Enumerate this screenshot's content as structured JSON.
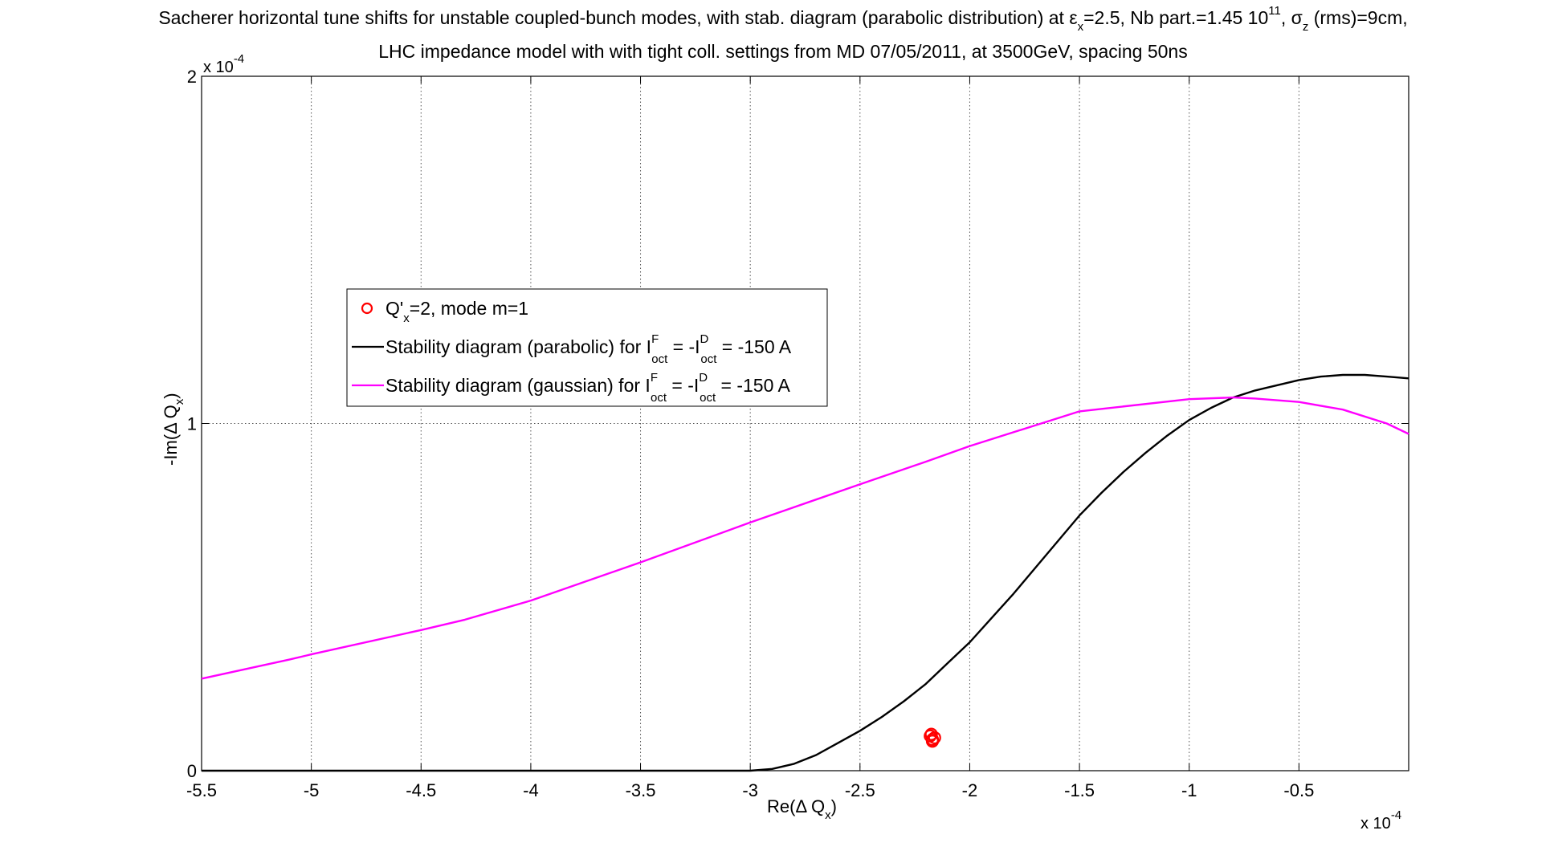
{
  "chart_data": {
    "type": "line",
    "title_line1": {
      "prefix": "Sacherer horizontal tune shifts for unstable coupled-bunch modes, with stab. diagram (parabolic distribution) at ε",
      "eps_sub": "x",
      "mid": "=2.5, Nb part.=1.45 10",
      "nb_sup": "11",
      "sep": ", σ",
      "sigma_sub": "z",
      "suffix": " (rms)=9cm,"
    },
    "title_line2": "LHC impedance model with with tight coll. settings from MD 07/05/2011, at 3500GeV, spacing 50ns",
    "xlabel": {
      "main": "Re(Δ Q",
      "sub": "x",
      "close": ")"
    },
    "ylabel": {
      "main": "-Im(Δ Q",
      "sub": "x",
      "close": ")"
    },
    "x_multiplier": {
      "base": "x 10",
      "exp": "-4"
    },
    "y_multiplier": {
      "base": "x 10",
      "exp": "-4"
    },
    "xlim": [
      -5.5,
      0
    ],
    "ylim": [
      0,
      2
    ],
    "x_ticks": [
      -5.5,
      -5,
      -4.5,
      -4,
      -3.5,
      -3,
      -2.5,
      -2,
      -1.5,
      -1,
      -0.5
    ],
    "x_tick_labels": [
      "-5.5",
      "-5",
      "-4.5",
      "-4",
      "-3.5",
      "-3",
      "-2.5",
      "-2",
      "-1.5",
      "-1",
      "-0.5"
    ],
    "y_ticks": [
      0,
      1,
      2
    ],
    "y_tick_labels": [
      "0",
      "1",
      "2"
    ],
    "grid": true,
    "legend_position": "upper-left",
    "series": [
      {
        "name_parts": {
          "a": "Q'",
          "a_sub": "x",
          "b": "=2, mode m=1"
        },
        "style": "marker-circle",
        "color": "#ff0000",
        "x": [
          -2.17,
          -2.18,
          -2.16,
          -2.17,
          -2.175
        ],
        "y": [
          0.09,
          0.1,
          0.095,
          0.085,
          0.105
        ]
      },
      {
        "name_parts": {
          "a": "Stability diagram (parabolic) for I",
          "sup1": "F",
          "sub1": "oct",
          "b": " = -I",
          "sup2": "D",
          "sub2": "oct",
          "c": " = -150 A"
        },
        "style": "line",
        "color": "#000000",
        "x": [
          -5.5,
          -5.0,
          -4.5,
          -4.0,
          -3.5,
          -3.0,
          -2.9,
          -2.8,
          -2.7,
          -2.6,
          -2.5,
          -2.4,
          -2.3,
          -2.2,
          -2.1,
          -2.0,
          -1.9,
          -1.8,
          -1.7,
          -1.6,
          -1.5,
          -1.4,
          -1.3,
          -1.2,
          -1.1,
          -1.0,
          -0.9,
          -0.8,
          -0.7,
          -0.6,
          -0.5,
          -0.4,
          -0.3,
          -0.2,
          -0.1,
          0.0
        ],
        "y": [
          0.0,
          0.0,
          0.0,
          0.0,
          0.0,
          0.0,
          0.005,
          0.02,
          0.045,
          0.08,
          0.115,
          0.155,
          0.2,
          0.25,
          0.31,
          0.37,
          0.44,
          0.51,
          0.585,
          0.66,
          0.735,
          0.8,
          0.86,
          0.915,
          0.965,
          1.01,
          1.045,
          1.075,
          1.095,
          1.11,
          1.125,
          1.135,
          1.14,
          1.14,
          1.135,
          1.13
        ]
      },
      {
        "name_parts": {
          "a": "Stability diagram (gaussian) for I",
          "sup1": "F",
          "sub1": "oct",
          "b": " = -I",
          "sup2": "D",
          "sub2": "oct",
          "c": " = -150 A"
        },
        "style": "line",
        "color": "#ff00ff",
        "x": [
          -5.5,
          -5.1,
          -5.0,
          -4.5,
          -4.3,
          -4.0,
          -3.5,
          -3.0,
          -2.5,
          -2.2,
          -2.0,
          -1.5,
          -1.0,
          -0.8,
          -0.7,
          -0.5,
          -0.3,
          -0.1,
          0.0
        ],
        "y": [
          0.265,
          0.32,
          0.335,
          0.405,
          0.435,
          0.49,
          0.6,
          0.715,
          0.825,
          0.89,
          0.935,
          1.035,
          1.07,
          1.075,
          1.072,
          1.062,
          1.04,
          1.0,
          0.97
        ]
      }
    ]
  }
}
